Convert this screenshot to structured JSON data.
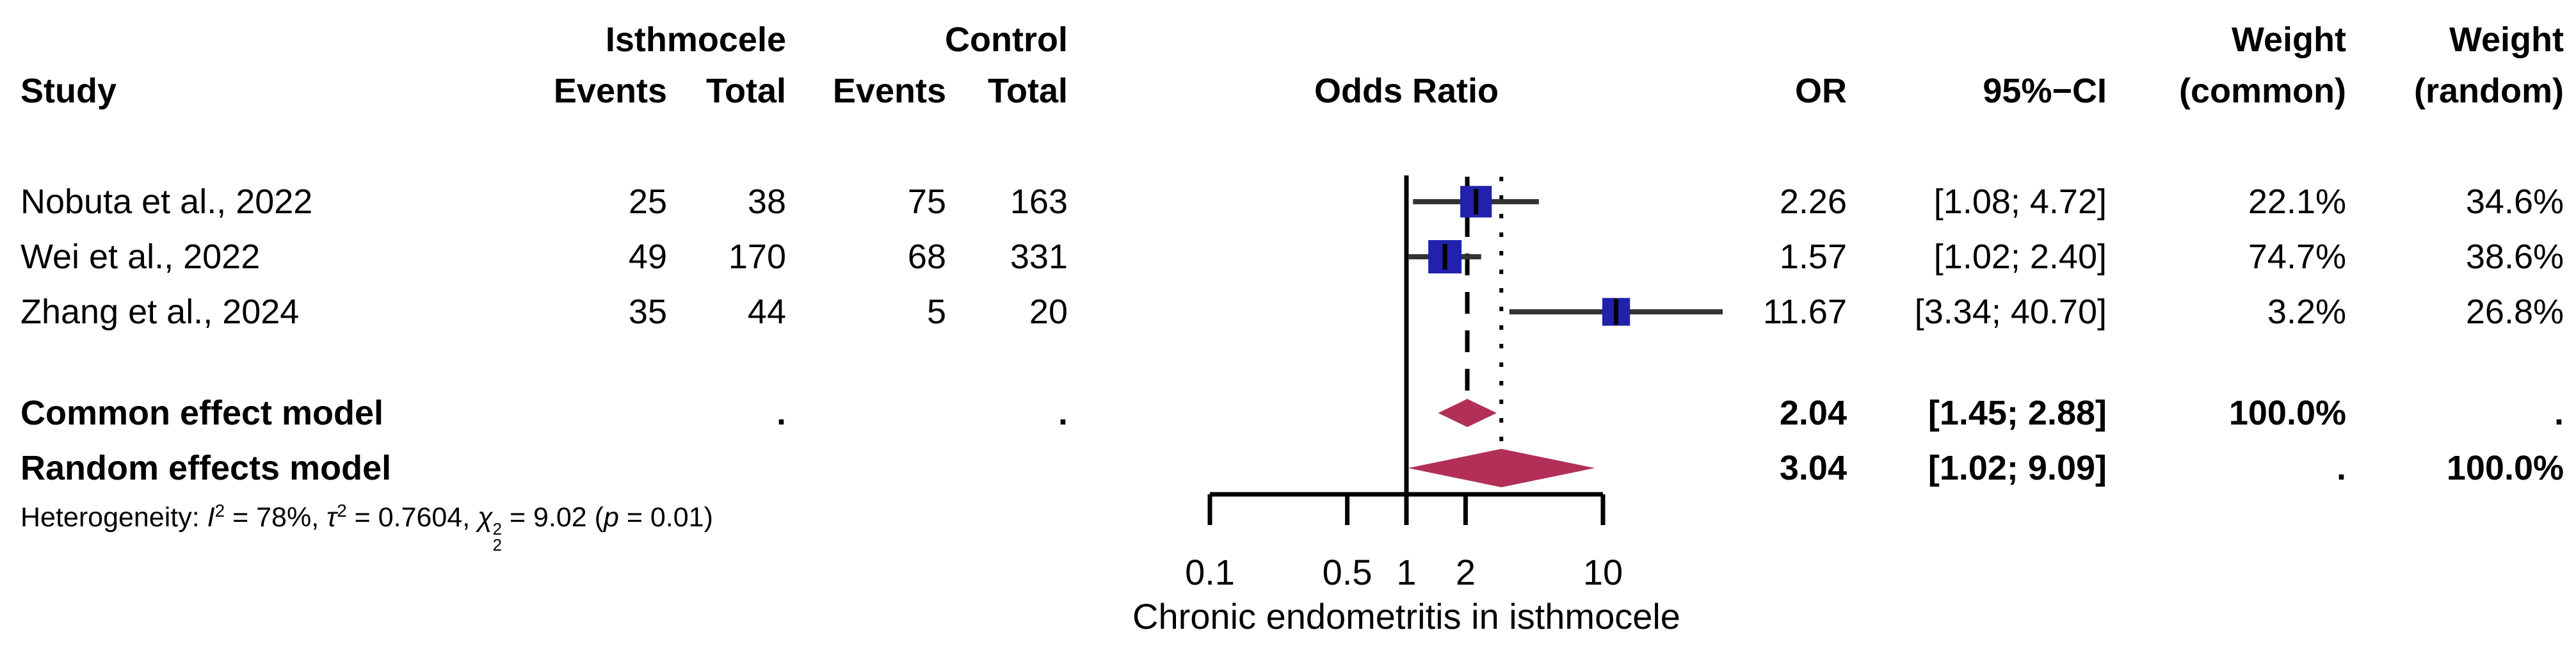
{
  "header": {
    "group_isthmocele": "Isthmocele",
    "group_control": "Control",
    "weight_top_common": "Weight",
    "weight_top_random": "Weight",
    "study": "Study",
    "events_isthmocele": "Events",
    "total_isthmocele": "Total",
    "events_control": "Events",
    "total_control": "Total",
    "odds_ratio": "Odds Ratio",
    "or": "OR",
    "ci": "95%−CI",
    "weight_common": "(common)",
    "weight_random": "(random)"
  },
  "rows": [
    {
      "study": "Nobuta et al., 2022",
      "isth_events": "25",
      "isth_total": "38",
      "ctrl_events": "75",
      "ctrl_total": "163",
      "or": "2.26",
      "ci": "[1.08; 4.72]",
      "w_common": "22.1%",
      "w_random": "34.6%"
    },
    {
      "study": "Wei et al., 2022",
      "isth_events": "49",
      "isth_total": "170",
      "ctrl_events": "68",
      "ctrl_total": "331",
      "or": "1.57",
      "ci": "[1.02; 2.40]",
      "w_common": "74.7%",
      "w_random": "38.6%"
    },
    {
      "study": "Zhang et al., 2024",
      "isth_events": "35",
      "isth_total": "44",
      "ctrl_events": "5",
      "ctrl_total": "20",
      "or": "11.67",
      "ci": "[3.34; 40.70]",
      "w_common": "3.2%",
      "w_random": "26.8%"
    }
  ],
  "summary": [
    {
      "label": "Common effect model",
      "isth_total": ".",
      "ctrl_total": ".",
      "or": "2.04",
      "ci": "[1.45; 2.88]",
      "w_common": "100.0%",
      "w_random": "."
    },
    {
      "label": "Random effects model",
      "isth_total": "",
      "ctrl_total": "",
      "or": "3.04",
      "ci": "[1.02; 9.09]",
      "w_common": ".",
      "w_random": "100.0%"
    }
  ],
  "heterogeneity": {
    "plain_text": "Heterogeneity: I2 = 78%, t2 = 0.7604, chi2_2 = 9.02 (p = 0.01)",
    "segments": [
      {
        "t": "Heterogeneity: "
      },
      {
        "t": "I",
        "i": 1
      },
      {
        "t": "2",
        "sup": 1
      },
      {
        "t": " = 78%, "
      },
      {
        "t": "τ",
        "i": 1
      },
      {
        "t": "2",
        "sup": 1
      },
      {
        "t": " = 0.7604, "
      },
      {
        "t": "χ",
        "i": 1
      },
      {
        "stack": {
          "sup": "2",
          "sub": "2"
        }
      },
      {
        "t": " = 9.02 ("
      },
      {
        "t": "p",
        "i": 1
      },
      {
        "t": " = 0.01)"
      }
    ]
  },
  "colors": {
    "square": "#2121ad",
    "diamond": "#b23058",
    "axis_line": "#000000",
    "ci_line": "#333333",
    "text": "#000000"
  },
  "chart_data": {
    "type": "forest",
    "effect_measure": "OR",
    "x_scale": "log10",
    "xlabel": "Chronic endometritis in isthmocele",
    "x_ticks": [
      0.1,
      0.5,
      1,
      2,
      10
    ],
    "x_axis_range": [
      0.1,
      10
    ],
    "ref_line": 1,
    "studies": [
      {
        "name": "Nobuta et al., 2022",
        "events_isthmocele": 25,
        "total_isthmocele": 38,
        "events_control": 75,
        "total_control": 163,
        "or": 2.26,
        "ci_low": 1.08,
        "ci_high": 4.72,
        "weight_common_pct": 22.1,
        "weight_random_pct": 34.6
      },
      {
        "name": "Wei et al., 2022",
        "events_isthmocele": 49,
        "total_isthmocele": 170,
        "events_control": 68,
        "total_control": 331,
        "or": 1.57,
        "ci_low": 1.02,
        "ci_high": 2.4,
        "weight_common_pct": 74.7,
        "weight_random_pct": 38.6
      },
      {
        "name": "Zhang et al., 2024",
        "events_isthmocele": 35,
        "total_isthmocele": 44,
        "events_control": 5,
        "total_control": 20,
        "or": 11.67,
        "ci_low": 3.34,
        "ci_high": 40.7,
        "weight_common_pct": 3.2,
        "weight_random_pct": 26.8
      }
    ],
    "summaries": [
      {
        "name": "Common effect model",
        "or": 2.04,
        "ci_low": 1.45,
        "ci_high": 2.88,
        "ref_line_style": "dashed",
        "weight_common_pct": 100.0
      },
      {
        "name": "Random effects model",
        "or": 3.04,
        "ci_low": 1.02,
        "ci_high": 9.09,
        "ref_line_style": "dotted",
        "weight_random_pct": 100.0
      }
    ],
    "heterogeneity": {
      "I2_pct": 78,
      "tau2": 0.7604,
      "chi2": 9.02,
      "df": 2,
      "p": 0.01
    }
  }
}
